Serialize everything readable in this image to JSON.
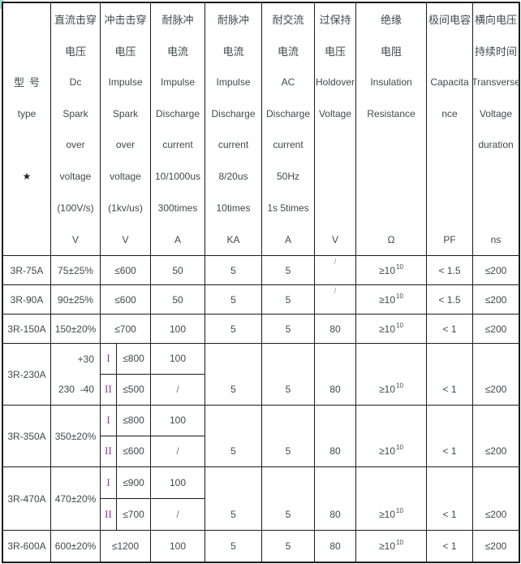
{
  "header": {
    "type": {
      "zh_left": "型",
      "zh_right": "号",
      "en": "type",
      "star": "★"
    },
    "cols": [
      {
        "id": "dc-spark-voltage",
        "lines": [
          "直流击穿",
          "电压",
          "Dc",
          "Spark",
          "over",
          "voltage",
          "(100V/s)",
          "V"
        ]
      },
      {
        "id": "impulse-spark-voltage",
        "lines": [
          "冲击击穿",
          "电压",
          "Impulse",
          "Spark",
          "over",
          "voltage",
          "(1kv/us)",
          "V"
        ]
      },
      {
        "id": "impulse-discharge-a",
        "lines": [
          "耐脉冲",
          "电流",
          "Impulse",
          "Discharge",
          "current",
          "10/1000us",
          "300times",
          "A"
        ]
      },
      {
        "id": "impulse-discharge-ka",
        "lines": [
          "耐脉冲",
          "电流",
          "Impulse",
          "Discharge",
          "current",
          "8/20us",
          "10times",
          "KA"
        ]
      },
      {
        "id": "ac-discharge-current",
        "lines": [
          "耐交流",
          "电流",
          "AC",
          "Discharge",
          "current",
          "50Hz",
          "1s 5times",
          "A"
        ]
      },
      {
        "id": "holdover-voltage",
        "lines": [
          "过保持",
          "电压",
          "Holdover",
          "Voltage",
          "",
          "",
          "",
          "V"
        ]
      },
      {
        "id": "insulation-resistance",
        "lines": [
          "绝缘",
          "电阻",
          "Insulation",
          "Resistance",
          "",
          "",
          "",
          "Ω"
        ]
      },
      {
        "id": "capacitance",
        "lines": [
          "极间电容",
          "",
          "Capacita",
          "nce",
          "",
          "",
          "",
          "PF"
        ]
      },
      {
        "id": "transverse-duration",
        "lines": [
          "横向电压",
          "持续时间",
          "Transverse",
          "Voltage",
          "duration",
          "",
          "",
          "ns"
        ]
      }
    ]
  },
  "rows": {
    "r1": {
      "type": "3R-75A",
      "dc": "75±25%",
      "imp": "≤600",
      "imp_a": "50",
      "ka": "5",
      "ac": "5",
      "hold": "/",
      "ins": {
        "base": "≥10",
        "sup": "10"
      },
      "pf": "< 1.5",
      "ns": "≤200"
    },
    "r2": {
      "type": "3R-90A",
      "dc": "90±25%",
      "imp": "≤600",
      "imp_a": "50",
      "ka": "5",
      "ac": "5",
      "hold": "/",
      "ins": {
        "base": "≥10",
        "sup": "10"
      },
      "pf": "< 1.5",
      "ns": "≤200"
    },
    "r3": {
      "type": "3R-150A",
      "dc": "150±20%",
      "imp": "≤700",
      "imp_a": "100",
      "ka": "5",
      "ac": "5",
      "hold": "80",
      "ins": {
        "base": "≥10",
        "sup": "10"
      },
      "pf": "< 1",
      "ns": "≤200"
    },
    "r4": {
      "type": "3R-230A",
      "dc_line1": "+30",
      "dc_line2": "230  -40",
      "sub1": {
        "grade": "I",
        "volt": "≤800",
        "curr": "100"
      },
      "sub2": {
        "grade": "II",
        "volt": "≤500",
        "curr": "/"
      },
      "ka": "5",
      "ac": "5",
      "hold": "80",
      "ins": {
        "base": "≥10",
        "sup": "10"
      },
      "pf": "< 1",
      "ns": "≤200"
    },
    "r5": {
      "type": "3R-350A",
      "dc": "350±20%",
      "sub1": {
        "grade": "I",
        "volt": "≤800",
        "curr": "100"
      },
      "sub2": {
        "grade": "II",
        "volt": "≤600",
        "curr": "/"
      },
      "ka": "5",
      "ac": "5",
      "hold": "80",
      "ins": {
        "base": "≥10",
        "sup": "10"
      },
      "pf": "< 1",
      "ns": "≤200"
    },
    "r6": {
      "type": "3R-470A",
      "dc": "470±20%",
      "sub1": {
        "grade": "I",
        "volt": "≤900",
        "curr": "100"
      },
      "sub2": {
        "grade": "II",
        "volt": "≤700",
        "curr": "/"
      },
      "ka": "5",
      "ac": "5",
      "hold": "80",
      "ins": {
        "base": "≥10",
        "sup": "10"
      },
      "pf": "< 1",
      "ns": "≤200"
    },
    "r7": {
      "type": "3R-600A",
      "dc": "600±20%",
      "imp": "≤1200",
      "imp_a": "100",
      "ka": "5",
      "ac": "5",
      "hold": "80",
      "ins": {
        "base": "≥10",
        "sup": "10"
      },
      "pf": "< 1",
      "ns": "≤200"
    }
  },
  "colors": {
    "grid_line": "#1c1c1c",
    "grade_numeral": "#993399",
    "text": "#3f4a4a"
  }
}
